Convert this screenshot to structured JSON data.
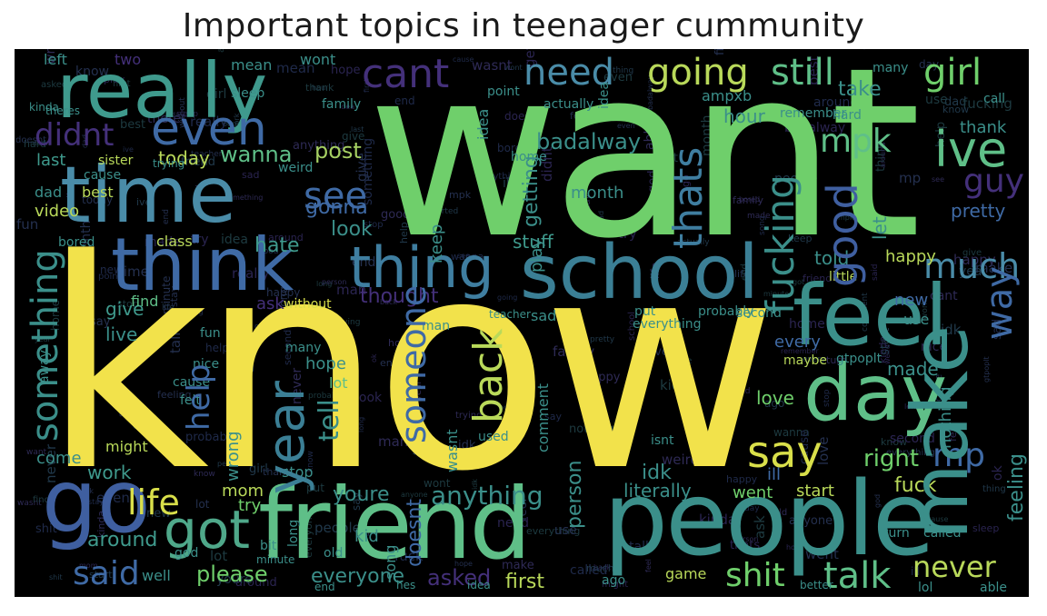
{
  "title": "Important topics in teenager cummunity",
  "colors": {
    "yellow": "#f2e24b",
    "green": "#6fcf6b",
    "teal": "#3b8f8a",
    "steel": "#3f6aa5",
    "purple": "#4a2f7a",
    "dark": "#2b2f52",
    "sea": "#2f9f8f"
  },
  "words": [
    {
      "text": "know",
      "color": "#f2e24b"
    },
    {
      "text": "want",
      "color": "#6fcf6b"
    },
    {
      "text": "people",
      "color": "#3b8f8a"
    },
    {
      "text": "friend",
      "color": "#5fbf88"
    },
    {
      "text": "really",
      "color": "#3f9a8d"
    },
    {
      "text": "time",
      "color": "#4a8ca8"
    },
    {
      "text": "think",
      "color": "#3f6aa5"
    },
    {
      "text": "school",
      "color": "#3b7f95"
    },
    {
      "text": "thing",
      "color": "#3f7ea0"
    },
    {
      "text": "feel",
      "color": "#3b8f8a"
    },
    {
      "text": "day",
      "color": "#5fbf88"
    },
    {
      "text": "make",
      "color": "#3b8f8a"
    },
    {
      "text": "go",
      "color": "#3f5fa0"
    },
    {
      "text": "got",
      "color": "#4fa88a"
    },
    {
      "text": "cant",
      "color": "#44307a"
    },
    {
      "text": "need",
      "color": "#4a8ca8"
    },
    {
      "text": "going",
      "color": "#b9d95a"
    },
    {
      "text": "still",
      "color": "#5fbf88"
    },
    {
      "text": "girl",
      "color": "#6fcf6b"
    },
    {
      "text": "even",
      "color": "#3f6aa5"
    },
    {
      "text": "didnt",
      "color": "#44307a"
    },
    {
      "text": "ive",
      "color": "#5fbf88"
    },
    {
      "text": "mpk",
      "color": "#5fbf88"
    },
    {
      "text": "good",
      "color": "#3f5fa0"
    },
    {
      "text": "year",
      "color": "#3b7f95"
    },
    {
      "text": "back",
      "color": "#b9d95a"
    },
    {
      "text": "say",
      "color": "#d9df4a"
    },
    {
      "text": "much",
      "color": "#4a8ca8"
    },
    {
      "text": "way",
      "color": "#3f6aa5"
    },
    {
      "text": "something",
      "color": "#3b8f8a"
    },
    {
      "text": "someone",
      "color": "#3f6aa5"
    },
    {
      "text": "life",
      "color": "#d9df4a"
    },
    {
      "text": "said",
      "color": "#3f6aa5"
    },
    {
      "text": "talk",
      "color": "#5fbf88"
    },
    {
      "text": "shit",
      "color": "#6fcf6b"
    },
    {
      "text": "never",
      "color": "#b9d95a"
    },
    {
      "text": "fucking",
      "color": "#3b8f8a"
    },
    {
      "text": "thats",
      "color": "#3f7ea0"
    },
    {
      "text": "anything",
      "color": "#3b8f8a"
    },
    {
      "text": "see",
      "color": "#3f6aa5"
    },
    {
      "text": "post",
      "color": "#a5cf62"
    },
    {
      "text": "wanna",
      "color": "#5fbf88"
    },
    {
      "text": "look",
      "color": "#3b8f8a"
    },
    {
      "text": "gonna",
      "color": "#3f6aa5"
    },
    {
      "text": "hate",
      "color": "#3f9a8d"
    },
    {
      "text": "badalway",
      "color": "#3b8f8a"
    },
    {
      "text": "today",
      "color": "#b9d95a"
    },
    {
      "text": "last",
      "color": "#3f9a8d"
    },
    {
      "text": "right",
      "color": "#6fcf6b"
    },
    {
      "text": "mp",
      "color": "#3f6aa5"
    },
    {
      "text": "idk",
      "color": "#3b8f8a"
    },
    {
      "text": "fuck",
      "color": "#b9d95a"
    },
    {
      "text": "please",
      "color": "#6fcf6b"
    },
    {
      "text": "everyone",
      "color": "#3b8f8a"
    },
    {
      "text": "first",
      "color": "#b9d95a"
    },
    {
      "text": "around",
      "color": "#3f9a8d"
    },
    {
      "text": "work",
      "color": "#3f9a8d"
    },
    {
      "text": "help",
      "color": "#3f6aa5"
    },
    {
      "text": "give",
      "color": "#3f9a8d"
    },
    {
      "text": "live",
      "color": "#3b8f8a"
    },
    {
      "text": "mom",
      "color": "#b9d95a"
    },
    {
      "text": "youre",
      "color": "#3b8f8a"
    },
    {
      "text": "doesnt",
      "color": "#3f6aa5"
    },
    {
      "text": "literally",
      "color": "#3b8f8a"
    },
    {
      "text": "went",
      "color": "#6fcf6b"
    },
    {
      "text": "start",
      "color": "#b9d95a"
    },
    {
      "text": "made",
      "color": "#3b8f8a"
    },
    {
      "text": "love",
      "color": "#6fcf6b"
    },
    {
      "text": "happy",
      "color": "#b9d95a"
    },
    {
      "text": "new",
      "color": "#3f6aa5"
    },
    {
      "text": "hour",
      "color": "#3b8f8a"
    },
    {
      "text": "take",
      "color": "#3b8f8a"
    },
    {
      "text": "thank",
      "color": "#3b8f8a"
    },
    {
      "text": "told",
      "color": "#3b8f8a"
    },
    {
      "text": "stuff",
      "color": "#3f9a8d"
    },
    {
      "text": "month",
      "color": "#3b8f8a"
    },
    {
      "text": "guy",
      "color": "#44307a"
    },
    {
      "text": "pretty",
      "color": "#3f6aa5"
    },
    {
      "text": "thought",
      "color": "#44307a"
    },
    {
      "text": "tell",
      "color": "#3b8f8a"
    },
    {
      "text": "ask",
      "color": "#44307a"
    },
    {
      "text": "without",
      "color": "#d9df4a"
    },
    {
      "text": "maybe",
      "color": "#b9d95a"
    },
    {
      "text": "little",
      "color": "#b9d95a"
    },
    {
      "text": "feeling",
      "color": "#3b8f8a"
    },
    {
      "text": "nothing",
      "color": "#3b8f8a"
    },
    {
      "text": "person",
      "color": "#3b8f8a"
    },
    {
      "text": "stay",
      "color": "#5fbf88"
    },
    {
      "text": "anyone",
      "color": "#3f6aa5"
    },
    {
      "text": "lot",
      "color": "#3b8f8a"
    },
    {
      "text": "ill",
      "color": "#44307a"
    },
    {
      "text": "hope",
      "color": "#3b8f8a"
    },
    {
      "text": "asked",
      "color": "#6fcf6b"
    },
    {
      "text": "well",
      "color": "#3b8f8a"
    },
    {
      "text": "try",
      "color": "#3b8f8a"
    },
    {
      "text": "kid",
      "color": "#b9d95a"
    },
    {
      "text": "come",
      "color": "#b9d95a"
    },
    {
      "text": "might",
      "color": "#b9d95a"
    },
    {
      "text": "video",
      "color": "#3b8f8a"
    },
    {
      "text": "best",
      "color": "#3b8f8a"
    },
    {
      "text": "dad",
      "color": "#b9d95a"
    },
    {
      "text": "sad",
      "color": "#3b8f8a"
    },
    {
      "text": "game",
      "color": "#3b8f8a"
    },
    {
      "text": "stop",
      "color": "#3f6aa5"
    },
    {
      "text": "ampxb",
      "color": "#3b8f8a"
    },
    {
      "text": "every",
      "color": "#3b8f8a"
    },
    {
      "text": "use",
      "color": "#3b8f8a"
    },
    {
      "text": "let",
      "color": "#3b8f8a"
    },
    {
      "text": "play",
      "color": "#b9d95a"
    },
    {
      "text": "getting",
      "color": "#5fbf88"
    },
    {
      "text": "started",
      "color": "#3b8f8a"
    },
    {
      "text": "class",
      "color": "#44307a"
    },
    {
      "text": "find",
      "color": "#3b8f8a"
    },
    {
      "text": "left",
      "color": "#3b8f8a"
    },
    {
      "text": "two",
      "color": "#3b8f8a"
    },
    {
      "text": "wont",
      "color": "#3b8f8a"
    },
    {
      "text": "mean",
      "color": "#3b8f8a"
    },
    {
      "text": "sleep",
      "color": "#3b8f8a"
    },
    {
      "text": "hard",
      "color": "#3b8f8a"
    },
    {
      "text": "call",
      "color": "#3b8f8a"
    },
    {
      "text": "home",
      "color": "#3b8f8a"
    },
    {
      "text": "ago",
      "color": "#3b8f8a"
    },
    {
      "text": "probably",
      "color": "#3b8f8a"
    },
    {
      "text": "everything",
      "color": "#3b8f8a"
    },
    {
      "text": "put",
      "color": "#3b8f8a"
    },
    {
      "text": "wasnt",
      "color": "#3b8f8a"
    },
    {
      "text": "wrong",
      "color": "#3b8f8a"
    },
    {
      "text": "keep",
      "color": "#b9d95a"
    },
    {
      "text": "trying",
      "color": "#3b8f8a"
    },
    {
      "text": "sister",
      "color": "#3b8f8a"
    },
    {
      "text": "weird",
      "color": "#3b8f8a"
    },
    {
      "text": "cause",
      "color": "#3b8f8a"
    },
    {
      "text": "kinda",
      "color": "#3b8f8a"
    },
    {
      "text": "theres",
      "color": "#3b8f8a"
    },
    {
      "text": "actually",
      "color": "#3b8f8a"
    },
    {
      "text": "point",
      "color": "#3b8f8a"
    },
    {
      "text": "idea",
      "color": "#3b8f8a"
    },
    {
      "text": "many",
      "color": "#3b8f8a"
    },
    {
      "text": "nice",
      "color": "#3b8f8a"
    },
    {
      "text": "felt",
      "color": "#3b8f8a"
    },
    {
      "text": "man",
      "color": "#3b8f8a"
    },
    {
      "text": "isnt",
      "color": "#3b8f8a"
    },
    {
      "text": "used",
      "color": "#3b8f8a"
    },
    {
      "text": "old",
      "color": "#3b8f8a"
    },
    {
      "text": "song",
      "color": "#3b8f8a"
    },
    {
      "text": "bit",
      "color": "#3b8f8a"
    },
    {
      "text": "long",
      "color": "#3b8f8a"
    },
    {
      "text": "god",
      "color": "#3b8f8a"
    },
    {
      "text": "turn",
      "color": "#3b8f8a"
    },
    {
      "text": "called",
      "color": "#3b8f8a"
    },
    {
      "text": "lol",
      "color": "#3b8f8a"
    },
    {
      "text": "able",
      "color": "#3b8f8a"
    },
    {
      "text": "better",
      "color": "#3b8f8a"
    },
    {
      "text": "hes",
      "color": "#3b8f8a"
    },
    {
      "text": "end",
      "color": "#3b8f8a"
    },
    {
      "text": "minute",
      "color": "#3b8f8a"
    },
    {
      "text": "comment",
      "color": "#3b8f8a"
    },
    {
      "text": "second",
      "color": "#3b8f8a"
    },
    {
      "text": "gtpoplt",
      "color": "#3b8f8a"
    },
    {
      "text": "teacher",
      "color": "#3b8f8a"
    },
    {
      "text": "away",
      "color": "#3b8f8a"
    },
    {
      "text": "bored",
      "color": "#3b8f8a"
    },
    {
      "text": "remember",
      "color": "#3b8f8a"
    },
    {
      "text": "family",
      "color": "#3b8f8a"
    },
    {
      "text": "fun",
      "color": "#3b8f8a"
    },
    {
      "text": "ok",
      "color": "#3b8f8a"
    },
    {
      "text": "yeah",
      "color": "#3b8f8a"
    }
  ]
}
